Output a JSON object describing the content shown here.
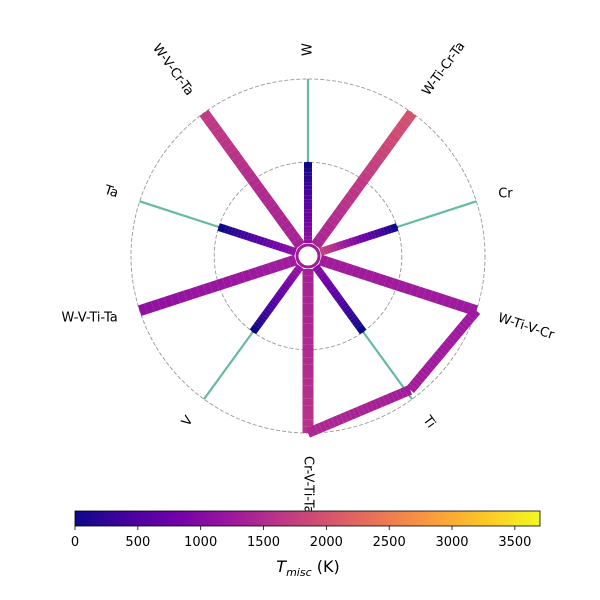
{
  "chart_data": {
    "type": "radial-composition-plot",
    "colormap": "plasma",
    "colorbar": {
      "label_main": "T",
      "label_sub": "misc",
      "label_unit": " (K)",
      "range": [
        0,
        3700
      ],
      "ticks": [
        0,
        500,
        1000,
        1500,
        2000,
        2500,
        3000,
        3500
      ]
    },
    "rings": [
      0.53,
      1.0
    ],
    "spokes": [
      {
        "label": "W",
        "reach": 1.0,
        "data_end": 0.53,
        "inner_T": 1150,
        "outer_T": 0
      },
      {
        "label": "W-Ti-Cr-Ta",
        "reach": 1.0,
        "data_end": 1.0,
        "inner_T": 1400,
        "outer_T": 2000
      },
      {
        "label": "Cr",
        "reach": 1.0,
        "data_end": 0.53,
        "inner_T": 1800,
        "outer_T": 0
      },
      {
        "label": "W-Ti-V-Cr",
        "reach": 1.0,
        "data_end": 1.0,
        "inner_T": 1300,
        "outer_T": 1250
      },
      {
        "label": "Ti",
        "reach": 1.0,
        "data_end": 0.53,
        "inner_T": 1050,
        "outer_T": 0
      },
      {
        "label": "Cr-V-Ti-Ta",
        "reach": 1.0,
        "data_end": 1.0,
        "inner_T": 1350,
        "outer_T": 1600
      },
      {
        "label": "V",
        "reach": 1.0,
        "data_end": 0.53,
        "inner_T": 1200,
        "outer_T": 0
      },
      {
        "label": "W-V-Ti-Ta",
        "reach": 1.0,
        "data_end": 1.0,
        "inner_T": 1300,
        "outer_T": 1100
      },
      {
        "label": "Ta",
        "reach": 1.0,
        "data_end": 0.53,
        "inner_T": 1150,
        "outer_T": 0
      },
      {
        "label": "W-V-Cr-Ta",
        "reach": 1.0,
        "data_end": 1.0,
        "inner_T": 1350,
        "outer_T": 1700
      }
    ],
    "connectors": [
      {
        "from": "W-Ti-V-Cr",
        "to": "Cr-V-Ti-Ta",
        "T_from": 1250,
        "T_mid": 1300,
        "T_to": 1450
      }
    ],
    "spoke_line_color": "#66bb9f",
    "ring_color": "#999999"
  }
}
